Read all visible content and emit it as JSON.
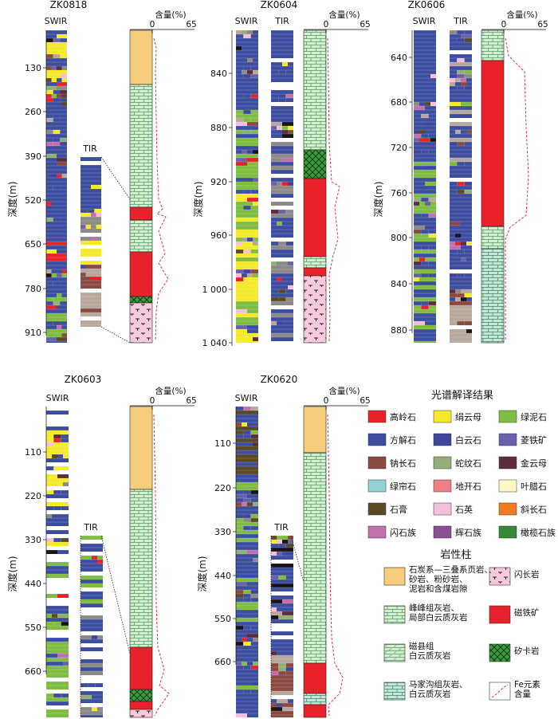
{
  "palette": {
    "kaolinite": "#e8212b",
    "sericite": "#f4ea2a",
    "chlorite": "#7fbd42",
    "calcite": "#3d4ea0",
    "dolomite": "#40479a",
    "siderite": "#6a62a8",
    "albite": "#8b4a41",
    "serpentine": "#93ae76",
    "phlogopite": "#5e2c3d",
    "epidote": "#92d3d8",
    "dickite": "#ef7f84",
    "pyrophyllite": "#fff8c6",
    "gypsum": "#5a4a25",
    "quartz": "#f6bedd",
    "orthoclase": "#ef7c22",
    "amphibole": "#c36fae",
    "pyroxene": "#8a4f8e",
    "olivine": "#37873a",
    "grey": "#8c8a87",
    "tan": "#b8a79c",
    "black": "#1b1416",
    "coal": "#f6cd7d",
    "limestone": "#d4ecd4",
    "limestone_line": "#5a9e5f",
    "diorite": "#f8c8dd",
    "magnetite": "#e8212b",
    "skarn": "#3f9b3f",
    "fe_line": "#e8212b"
  },
  "column_headers": {
    "swir": "SWIR",
    "tir": "TIR",
    "content": "含量(%)",
    "content_min": "0",
    "content_max": "65"
  },
  "wells": [
    {
      "id": "ZK0818",
      "axis_title": "深度(m)",
      "ticks": [
        "130",
        "260",
        "390",
        "520",
        "650",
        "780",
        "910"
      ]
    },
    {
      "id": "ZK0604",
      "axis_title": "深度(m)",
      "ticks": [
        "840",
        "880",
        "920",
        "960",
        "1 000",
        "1 040"
      ]
    },
    {
      "id": "ZK0606",
      "axis_title": "深度(m)",
      "ticks": [
        "640",
        "680",
        "720",
        "760",
        "800",
        "840",
        "880"
      ]
    },
    {
      "id": "ZK0603",
      "axis_title": "深度(m)",
      "ticks": [
        "110",
        "220",
        "330",
        "440",
        "550",
        "660"
      ]
    },
    {
      "id": "ZK0620",
      "axis_title": "深度(m)",
      "ticks": [
        "110",
        "220",
        "330",
        "440",
        "550",
        "660"
      ]
    }
  ],
  "legend_spectral": {
    "title": "光谱解译结果",
    "items": [
      {
        "label": "高岭石",
        "key": "kaolinite"
      },
      {
        "label": "绢云母",
        "key": "sericite"
      },
      {
        "label": "绿泥石",
        "key": "chlorite"
      },
      {
        "label": "方解石",
        "key": "calcite"
      },
      {
        "label": "白云石",
        "key": "dolomite"
      },
      {
        "label": "菱铁矿",
        "key": "siderite"
      },
      {
        "label": "钠长石",
        "key": "albite"
      },
      {
        "label": "蛇纹石",
        "key": "serpentine"
      },
      {
        "label": "金云母",
        "key": "phlogopite"
      },
      {
        "label": "绿帘石",
        "key": "epidote"
      },
      {
        "label": "地开石",
        "key": "dickite"
      },
      {
        "label": "叶腊石",
        "key": "pyrophyllite"
      },
      {
        "label": "石膏",
        "key": "gypsum"
      },
      {
        "label": "石英",
        "key": "quartz"
      },
      {
        "label": "斜长石",
        "key": "orthoclase"
      },
      {
        "label": "闪石族",
        "key": "amphibole"
      },
      {
        "label": "辉石族",
        "key": "pyroxene"
      },
      {
        "label": "橄榄石族",
        "key": "olivine"
      }
    ]
  },
  "legend_lith": {
    "title": "岩性柱",
    "items": [
      {
        "lines": [
          "石炭系—三叠系页岩、",
          "砂岩、粉砂岩、",
          "泥岩和含煤岩隙"
        ],
        "pattern": "coal"
      },
      {
        "lines": [
          "闪长岩"
        ],
        "pattern": "diorite"
      },
      {
        "lines": [
          "峰峰组灰岩、",
          "局部白云质灰岩"
        ],
        "pattern": "limestone"
      },
      {
        "lines": [
          "磁铁矿"
        ],
        "pattern": "magnetite"
      },
      {
        "lines": [
          "磁县组",
          "白云质灰岩"
        ],
        "pattern": "dolo"
      },
      {
        "lines": [
          "矽卡岩"
        ],
        "pattern": "skarn"
      },
      {
        "lines": [
          "马家沟组灰岩、",
          "白云质灰岩"
        ],
        "pattern": "majiagou"
      },
      {
        "lines": [
          "Fe元素",
          "含量"
        ],
        "pattern": "feline"
      }
    ]
  }
}
